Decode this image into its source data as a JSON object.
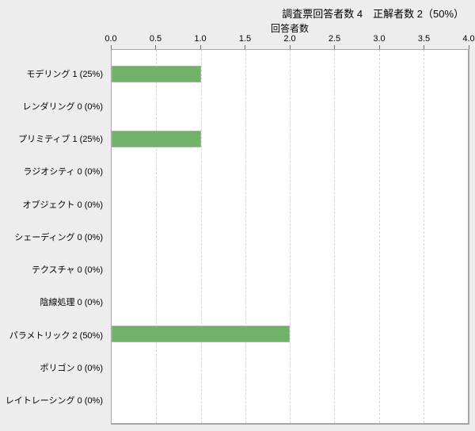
{
  "header": {
    "title": "調査票回答者数 4　正解者数 2（50%）"
  },
  "chart_data": {
    "type": "bar",
    "orientation": "horizontal",
    "title": "調査票回答者数 4　正解者数 2（50%）",
    "xlabel": "回答者数",
    "ylabel": "",
    "xlim": [
      0,
      4
    ],
    "xticks": [
      "0.0",
      "0.5",
      "1.0",
      "1.5",
      "2.0",
      "2.5",
      "3.0",
      "3.5",
      "4.0"
    ],
    "grid": "vertical-dashed",
    "legend": "none",
    "categories": [
      "モデリング",
      "レンダリング",
      "プリミティブ",
      "ラジオシティ",
      "オブジェクト",
      "シェーディング",
      "テクスチャ",
      "陰線処理",
      "パラメトリック",
      "ポリゴン",
      "レイトレーシング"
    ],
    "category_labels": [
      "モデリング 1 (25%)",
      "レンダリング 0 (0%)",
      "プリミティブ 1 (25%)",
      "ラジオシティ 0 (0%)",
      "オブジェクト 0 (0%)",
      "シェーディング 0 (0%)",
      "テクスチャ 0 (0%)",
      "陰線処理 0 (0%)",
      "パラメトリック 2 (50%)",
      "ポリゴン 0 (0%)",
      "レイトレーシング 0 (0%)"
    ],
    "values": [
      1,
      0,
      1,
      0,
      0,
      0,
      0,
      0,
      2,
      0,
      0
    ],
    "percentages": [
      "25%",
      "0%",
      "25%",
      "0%",
      "0%",
      "0%",
      "0%",
      "0%",
      "50%",
      "0%",
      "0%"
    ],
    "respondents_total": "4",
    "correct_total": "2",
    "correct_rate": "50%",
    "colors": {
      "bar_fill": "#72B169",
      "bar_border": "#ADADAD",
      "plot_background": "#FFFFFF",
      "page_background": "#EDEDED",
      "gridline": "#D4D4D4",
      "plot_border": "#A6A6A6",
      "text": "#000000"
    }
  }
}
